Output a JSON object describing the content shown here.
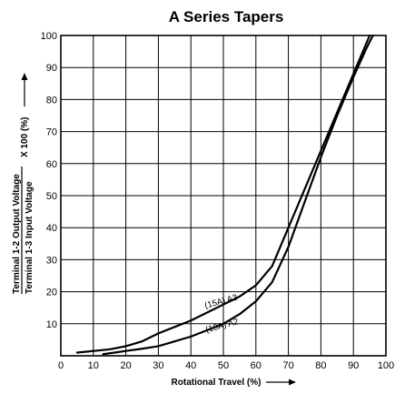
{
  "chart_data": {
    "type": "line",
    "title": "A Series Tapers",
    "xlabel": "Rotational Travel (%)",
    "ylabel_multiplier": "X 100 (%)",
    "ylabel_numerator": "Terminal 1-2 Output Voltage",
    "ylabel_denominator": "Terminal 1-3 Input Voltage",
    "xlim": [
      0,
      100
    ],
    "ylim": [
      0,
      100
    ],
    "x_ticks": [
      "0",
      "10",
      "20",
      "30",
      "40",
      "50",
      "60",
      "70",
      "80",
      "90",
      "100"
    ],
    "y_ticks": [
      "10",
      "20",
      "30",
      "40",
      "50",
      "60",
      "70",
      "80",
      "90",
      "100"
    ],
    "grid": true,
    "series": [
      {
        "name": "(15A) A3",
        "x": [
          5,
          15,
          20,
          25,
          30,
          35,
          40,
          45,
          50,
          55,
          60,
          65,
          70,
          75,
          80,
          85,
          90,
          95
        ],
        "y": [
          1,
          2,
          3,
          4.5,
          7,
          9,
          11,
          13.5,
          16,
          18.5,
          22,
          28,
          40,
          52,
          64,
          76,
          88,
          100
        ]
      },
      {
        "name": "(10A) A2",
        "x": [
          13,
          20,
          25,
          30,
          35,
          40,
          45,
          50,
          55,
          60,
          65,
          70,
          75,
          80,
          85,
          90,
          94,
          96
        ],
        "y": [
          0.5,
          1.5,
          2.2,
          3,
          4.5,
          6,
          8,
          10,
          13,
          17,
          23,
          34,
          48,
          62,
          75,
          87,
          96,
          100
        ]
      }
    ],
    "annotations": [
      {
        "text": "(15A) A3",
        "series": "(15A) A3"
      },
      {
        "text": "(10A) A2",
        "series": "(10A) A2"
      }
    ]
  }
}
